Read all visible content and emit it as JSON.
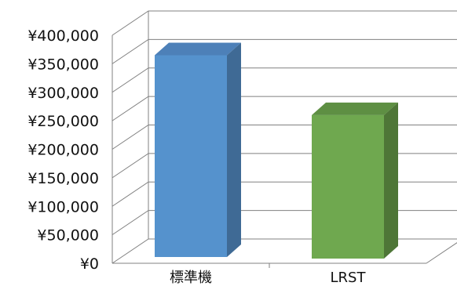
{
  "chart_data": {
    "type": "bar",
    "categories": [
      "標準機",
      "LRST"
    ],
    "values": [
      365000,
      260000
    ],
    "ylim": [
      0,
      400000
    ],
    "yticks": [
      "¥0",
      "¥50,000",
      "¥100,000",
      "¥150,000",
      "¥200,000",
      "¥250,000",
      "¥300,000",
      "¥350,000",
      "¥400,000"
    ],
    "grid": true,
    "legend": "none",
    "three_d": true,
    "colors": {
      "bars": [
        "#5592cd",
        "#6fa84f"
      ],
      "bar_tops": [
        "#4d80b8",
        "#5e8f43"
      ],
      "bar_sides": [
        "#3f6a95",
        "#4e7637"
      ],
      "grid": "#808080",
      "text": "#111111"
    }
  }
}
